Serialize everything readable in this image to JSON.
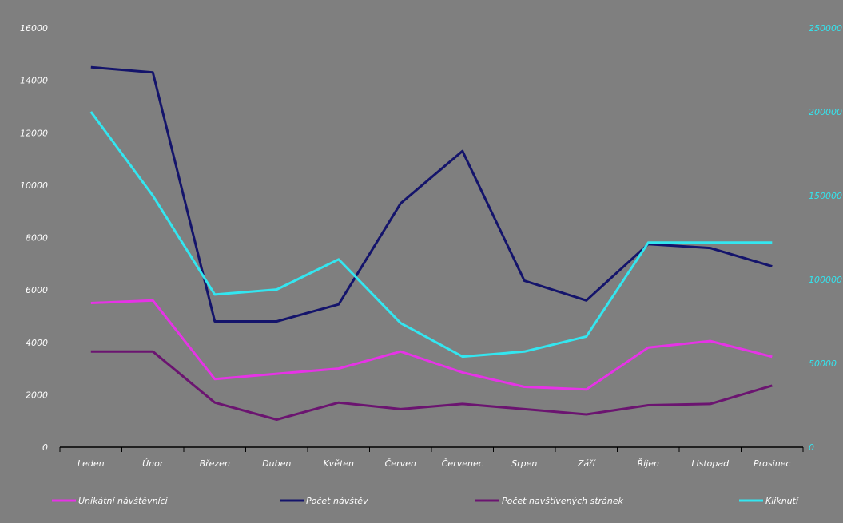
{
  "chart_data": {
    "type": "line",
    "title": "",
    "xlabel": "",
    "ylabel": "",
    "categories": [
      "Leden",
      "Únor",
      "Březen",
      "Duben",
      "Květen",
      "Červen",
      "Červenec",
      "Srpen",
      "Září",
      "Říjen",
      "Listopad",
      "Prosinec"
    ],
    "y_left": {
      "ticks": [
        "0",
        "2000",
        "4000",
        "6000",
        "8000",
        "10000",
        "12000",
        "14000",
        "16000"
      ],
      "ylim": [
        0,
        16000
      ]
    },
    "y_right": {
      "ticks": [
        "0",
        "50000",
        "100000",
        "150000",
        "200000",
        "250000"
      ],
      "ylim": [
        0,
        250000
      ]
    },
    "grid": false,
    "legend_position": "bottom",
    "series": [
      {
        "name": "Unikátní návštěvníci",
        "axis": "left",
        "color": "#e633e6",
        "values": [
          5500,
          5600,
          2600,
          2800,
          3000,
          3650,
          2850,
          2300,
          2200,
          3800,
          4050,
          3450
        ]
      },
      {
        "name": "Počet návštěv",
        "axis": "left",
        "color": "#14146b",
        "values": [
          14500,
          14300,
          4800,
          4800,
          5450,
          9300,
          11300,
          6350,
          5600,
          7750,
          7600,
          6900
        ]
      },
      {
        "name": "Počet navštívených stránek",
        "axis": "left",
        "color": "#6b1470",
        "values": [
          3650,
          3650,
          1700,
          1050,
          1700,
          1450,
          1650,
          1450,
          1250,
          1600,
          1650,
          2350
        ]
      },
      {
        "name": "Kliknutí",
        "axis": "right",
        "color": "#33e6f0",
        "values": [
          200000,
          150000,
          91000,
          94000,
          112000,
          74000,
          54000,
          57000,
          66000,
          122000,
          122000,
          122000
        ]
      }
    ]
  }
}
